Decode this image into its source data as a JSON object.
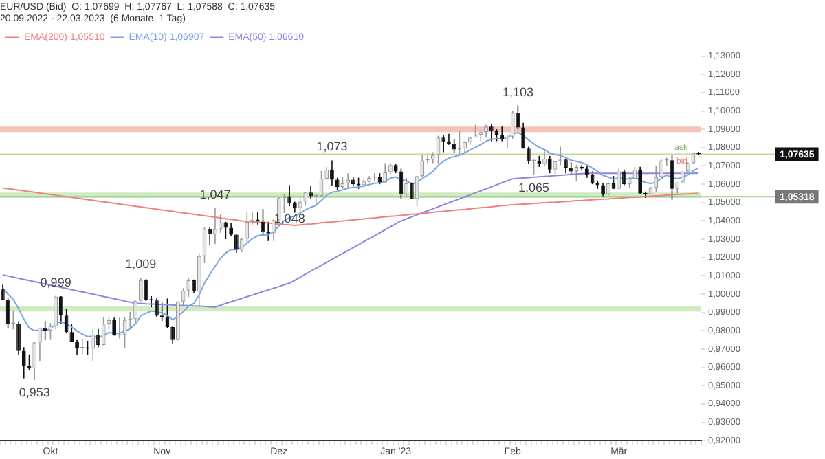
{
  "chart_data": {
    "type": "candlestick",
    "title": "EUR/USD (Bid)  O: 1,07699  H: 1,07767  L: 1,07588  C: 1,07635",
    "subtitle": "20.09.2022 - 22.03.2023  (6 Monate, 1 Tag)",
    "categories": [
      null,
      null,
      null,
      null,
      null,
      null,
      null,
      null,
      null,
      "Okt",
      null,
      null,
      null,
      null,
      null,
      null,
      null,
      null,
      null,
      null,
      null,
      null,
      null,
      null,
      null,
      null,
      null,
      null,
      null,
      null,
      "Nov",
      null,
      null,
      null,
      null,
      null,
      null,
      null,
      null,
      null,
      null,
      null,
      null,
      null,
      null,
      null,
      null,
      null,
      null,
      null,
      null,
      null,
      "Dez",
      null,
      null,
      null,
      null,
      null,
      null,
      null,
      null,
      null,
      null,
      null,
      null,
      null,
      null,
      null,
      null,
      null,
      null,
      null,
      null,
      null,
      "Jan '23",
      null,
      null,
      null,
      null,
      null,
      null,
      null,
      null,
      null,
      null,
      null,
      null,
      null,
      null,
      null,
      null,
      null,
      null,
      null,
      null,
      null,
      "Feb",
      null,
      null,
      null,
      null,
      null,
      null,
      null,
      null,
      null,
      null,
      null,
      null,
      null,
      null,
      null,
      null,
      null,
      null,
      null,
      "Mär",
      null,
      null,
      null,
      null,
      null,
      null,
      null,
      null,
      null,
      null,
      null,
      null,
      null,
      null,
      null
    ],
    "ohlc": [
      [
        1.0025,
        1.0051,
        0.9967,
        0.997
      ],
      [
        0.997,
        0.9976,
        0.9812,
        0.9837
      ],
      [
        0.9837,
        0.9907,
        0.9808,
        0.9837
      ],
      [
        0.9837,
        0.9852,
        0.9669,
        0.969
      ],
      [
        0.969,
        0.971,
        0.954,
        0.9607
      ],
      [
        0.9607,
        0.9671,
        0.9585,
        0.9594
      ],
      [
        0.9594,
        0.974,
        0.953,
        0.9736
      ],
      [
        0.9736,
        0.9817,
        0.9636,
        0.9816
      ],
      [
        0.9816,
        0.9853,
        0.9749,
        0.9801
      ],
      [
        0.9801,
        0.9842,
        0.975,
        0.9825
      ],
      [
        0.9825,
        0.999,
        0.9809,
        0.9987
      ],
      [
        0.9987,
        0.9989,
        0.9836,
        0.9883
      ],
      [
        0.9883,
        0.9921,
        0.9789,
        0.9793
      ],
      [
        0.9793,
        0.9835,
        0.9738,
        0.974
      ],
      [
        0.974,
        0.975,
        0.967,
        0.9704
      ],
      [
        0.9704,
        0.9757,
        0.9672,
        0.9705
      ],
      [
        0.9705,
        0.9745,
        0.967,
        0.9702
      ],
      [
        0.9702,
        0.9807,
        0.9632,
        0.978
      ],
      [
        0.978,
        0.981,
        0.971,
        0.9722
      ],
      [
        0.9722,
        0.9873,
        0.972,
        0.9838
      ],
      [
        0.9838,
        0.9876,
        0.9808,
        0.9858
      ],
      [
        0.9858,
        0.9872,
        0.9774,
        0.9774
      ],
      [
        0.9774,
        0.9875,
        0.9758,
        0.978
      ],
      [
        0.978,
        0.9873,
        0.9705,
        0.9859
      ],
      [
        0.9859,
        0.9903,
        0.9811,
        0.9863
      ],
      [
        0.9863,
        0.9965,
        0.9834,
        0.9964
      ],
      [
        0.9964,
        1.009,
        0.996,
        1.0077
      ],
      [
        1.0077,
        1.0083,
        0.9963,
        0.9966
      ],
      [
        0.9966,
        0.9989,
        0.9928,
        0.9965
      ],
      [
        0.9965,
        0.9977,
        0.9873,
        0.9882
      ],
      [
        0.9882,
        0.9954,
        0.9853,
        0.9875
      ],
      [
        0.9875,
        0.9976,
        0.9815,
        0.982
      ],
      [
        0.982,
        0.9825,
        0.973,
        0.975
      ],
      [
        0.975,
        0.996,
        0.9748,
        0.996
      ],
      [
        0.996,
        1.0033,
        0.9935,
        1.002
      ],
      [
        1.002,
        1.0085,
        0.9985,
        1.0075
      ],
      [
        1.0075,
        1.008,
        1.0007,
        1.0014
      ],
      [
        1.0014,
        1.0222,
        0.9935,
        1.0208
      ],
      [
        1.0208,
        1.0364,
        1.017,
        1.0355
      ],
      [
        1.0355,
        1.0365,
        1.027,
        1.0327
      ],
      [
        1.0327,
        1.047,
        1.0273,
        1.0355
      ],
      [
        1.0355,
        1.0435,
        1.0335,
        1.0392
      ],
      [
        1.0392,
        1.0395,
        1.03,
        1.0362
      ],
      [
        1.0362,
        1.0387,
        1.0318,
        1.0325
      ],
      [
        1.0325,
        1.0328,
        1.0225,
        1.0242
      ],
      [
        1.0242,
        1.0307,
        1.023,
        1.0302
      ],
      [
        1.0302,
        1.0448,
        1.0285,
        1.0394
      ],
      [
        1.0394,
        1.045,
        1.038,
        1.0407
      ],
      [
        1.0407,
        1.045,
        1.038,
        1.0396
      ],
      [
        1.0396,
        1.0465,
        1.033,
        1.0339
      ],
      [
        1.0339,
        1.0395,
        1.029,
        1.0332
      ],
      [
        1.0332,
        1.041,
        1.029,
        1.0404
      ],
      [
        1.0404,
        1.053,
        1.04,
        1.0524
      ],
      [
        1.0524,
        1.0545,
        1.0443,
        1.0535
      ],
      [
        1.0535,
        1.0595,
        1.048,
        1.0495
      ],
      [
        1.0495,
        1.0505,
        1.0445,
        1.047
      ],
      [
        1.047,
        1.0525,
        1.0445,
        1.0505
      ],
      [
        1.0505,
        1.0555,
        1.0485,
        1.0555
      ],
      [
        1.0555,
        1.059,
        1.052,
        1.0535
      ],
      [
        1.0535,
        1.055,
        1.0485,
        1.0537
      ],
      [
        1.0537,
        1.0673,
        1.053,
        1.063
      ],
      [
        1.063,
        1.0695,
        1.0625,
        1.068
      ],
      [
        1.068,
        1.073,
        1.059,
        1.0625
      ],
      [
        1.0625,
        1.0635,
        1.0568,
        1.0585
      ],
      [
        1.0585,
        1.064,
        1.0575,
        1.0605
      ],
      [
        1.0605,
        1.066,
        1.0575,
        1.0625
      ],
      [
        1.0625,
        1.064,
        1.059,
        1.06
      ],
      [
        1.06,
        1.0636,
        1.0575,
        1.0595
      ],
      [
        1.0595,
        1.063,
        1.0585,
        1.0615
      ],
      [
        1.0615,
        1.0645,
        1.061,
        1.0635
      ],
      [
        1.0635,
        1.066,
        1.0615,
        1.064
      ],
      [
        1.064,
        1.066,
        1.06,
        1.061
      ],
      [
        1.061,
        1.0715,
        1.0605,
        1.0665
      ],
      [
        1.0665,
        1.0715,
        1.0655,
        1.0705
      ],
      [
        1.0705,
        1.0713,
        1.066,
        1.067
      ],
      [
        1.067,
        1.0685,
        1.052,
        1.0545
      ],
      [
        1.0545,
        1.0635,
        1.0535,
        1.0605
      ],
      [
        1.0605,
        1.061,
        1.052,
        1.052
      ],
      [
        1.052,
        1.0645,
        1.048,
        1.0645
      ],
      [
        1.0645,
        1.076,
        1.064,
        1.073
      ],
      [
        1.073,
        1.076,
        1.0715,
        1.0735
      ],
      [
        1.0735,
        1.0775,
        1.0715,
        1.076
      ],
      [
        1.076,
        1.0865,
        1.071,
        1.0855
      ],
      [
        1.0855,
        1.087,
        1.0775,
        1.083
      ],
      [
        1.083,
        1.0875,
        1.0815,
        1.082
      ],
      [
        1.082,
        1.0845,
        1.077,
        1.079
      ],
      [
        1.079,
        1.089,
        1.0765,
        1.0795
      ],
      [
        1.0795,
        1.0835,
        1.077,
        1.083
      ],
      [
        1.083,
        1.086,
        1.0815,
        1.0855
      ],
      [
        1.0855,
        1.0925,
        1.0855,
        1.087
      ],
      [
        1.087,
        1.089,
        1.0835,
        1.0885
      ],
      [
        1.0885,
        1.0925,
        1.0855,
        1.0915
      ],
      [
        1.0915,
        1.093,
        1.0835,
        1.089
      ],
      [
        1.089,
        1.09,
        1.0835,
        1.087
      ],
      [
        1.087,
        1.0915,
        1.0835,
        1.0845
      ],
      [
        1.0845,
        1.087,
        1.08,
        1.086
      ],
      [
        1.086,
        1.1,
        1.0845,
        1.099
      ],
      [
        1.099,
        1.103,
        1.09,
        1.091
      ],
      [
        1.091,
        1.0935,
        1.0795,
        1.0795
      ],
      [
        1.0795,
        1.0805,
        1.071,
        1.0725
      ],
      [
        1.0725,
        1.0735,
        1.065,
        1.0725
      ],
      [
        1.0725,
        1.0755,
        1.0695,
        1.071
      ],
      [
        1.071,
        1.079,
        1.07,
        1.074
      ],
      [
        1.074,
        1.0755,
        1.066,
        1.068
      ],
      [
        1.068,
        1.0725,
        1.0655,
        1.0725
      ],
      [
        1.0725,
        1.0805,
        1.0705,
        1.0735
      ],
      [
        1.0735,
        1.074,
        1.066,
        1.069
      ],
      [
        1.069,
        1.072,
        1.0655,
        1.067
      ],
      [
        1.067,
        1.0705,
        1.0615,
        1.0695
      ],
      [
        1.0695,
        1.0705,
        1.0675,
        1.0685
      ],
      [
        1.0685,
        1.07,
        1.0635,
        1.065
      ],
      [
        1.065,
        1.067,
        1.06,
        1.0605
      ],
      [
        1.0605,
        1.062,
        1.0575,
        1.0595
      ],
      [
        1.0595,
        1.0605,
        1.0535,
        1.0545
      ],
      [
        1.0545,
        1.061,
        1.0535,
        1.0605
      ],
      [
        1.0605,
        1.0645,
        1.0575,
        1.0575
      ],
      [
        1.0575,
        1.069,
        1.0575,
        1.067
      ],
      [
        1.067,
        1.068,
        1.0595,
        1.06
      ],
      [
        1.06,
        1.064,
        1.058,
        1.063
      ],
      [
        1.063,
        1.0695,
        1.0625,
        1.068
      ],
      [
        1.068,
        1.0695,
        1.0545,
        1.055
      ],
      [
        1.055,
        1.056,
        1.0525,
        1.0545
      ],
      [
        1.0545,
        1.0585,
        1.0545,
        1.058
      ],
      [
        1.058,
        1.07,
        1.056,
        1.064
      ],
      [
        1.064,
        1.0735,
        1.064,
        1.073
      ],
      [
        1.073,
        1.0745,
        1.07,
        1.0731
      ],
      [
        1.0731,
        1.076,
        1.0515,
        1.0575
      ],
      [
        1.0575,
        1.061,
        1.055,
        1.061
      ],
      [
        1.061,
        1.067,
        1.0605,
        1.067
      ],
      [
        1.067,
        1.072,
        1.0665,
        1.0715
      ],
      [
        1.0715,
        1.077,
        1.071,
        1.077
      ],
      [
        1.07699,
        1.07767,
        1.07588,
        1.07635
      ]
    ],
    "series": [
      {
        "type": "line",
        "name": "EMA(200) 1,05510",
        "color": "#f08080",
        "values": [
          1.058,
          1.0576,
          1.0572,
          1.0568,
          1.0564,
          1.056,
          1.0556,
          1.0552,
          1.0548,
          1.0544,
          1.054,
          1.0536,
          1.0532,
          1.0528,
          1.0524,
          1.052,
          1.0516,
          1.0512,
          1.0508,
          1.0504,
          1.05,
          1.0496,
          1.0492,
          1.0488,
          1.0484,
          1.048,
          1.0476,
          1.0472,
          1.0468,
          1.0464,
          1.046,
          1.0456,
          1.0452,
          1.0448,
          1.0444,
          1.044,
          1.0436,
          1.0432,
          1.0428,
          1.0424,
          1.042,
          1.0416,
          1.0412,
          1.0408,
          1.0404,
          1.04,
          1.0398,
          1.0395,
          1.0392,
          1.039,
          1.0388,
          1.0385,
          1.0382,
          1.038,
          1.0378,
          1.0375,
          1.0378,
          1.0381,
          1.0383,
          1.0386,
          1.0389,
          1.0392,
          1.0394,
          1.0397,
          1.04,
          1.0403,
          1.0405,
          1.0408,
          1.0411,
          1.0414,
          1.0416,
          1.0419,
          1.0422,
          1.0425,
          1.0427,
          1.043,
          1.0433,
          1.0436,
          1.0438,
          1.0441,
          1.0444,
          1.0447,
          1.045,
          1.0452,
          1.0455,
          1.0458,
          1.0461,
          1.0463,
          1.0466,
          1.0469,
          1.0472,
          1.0474,
          1.0477,
          1.048,
          1.0483,
          1.0485,
          1.0488,
          1.049,
          1.0492,
          1.0493,
          1.0495,
          1.0497,
          1.0499,
          1.0501,
          1.0502,
          1.0504,
          1.0506,
          1.0508,
          1.051,
          1.0511,
          1.0513,
          1.0515,
          1.0517,
          1.0519,
          1.052,
          1.0522,
          1.0524,
          1.0526,
          1.0528,
          1.0529,
          1.0531,
          1.0533,
          1.0535,
          1.0537,
          1.0538,
          1.054,
          1.0542,
          1.0544,
          1.0546,
          1.0547,
          1.0549,
          1.0551
        ]
      },
      {
        "type": "line",
        "name": "EMA(10) 1,06907",
        "color": "#7aa6e0",
        "values": [
          1.0036,
          1.0,
          0.9971,
          0.992,
          0.9864,
          0.9815,
          0.9801,
          0.9804,
          0.9804,
          0.9808,
          0.984,
          0.9848,
          0.9838,
          0.982,
          0.9799,
          0.9782,
          0.9768,
          0.977,
          0.9761,
          0.9775,
          0.979,
          0.9787,
          0.9786,
          0.9799,
          0.981,
          0.9838,
          0.9881,
          0.9896,
          0.9908,
          0.9903,
          0.9898,
          0.9884,
          0.986,
          0.9878,
          0.9904,
          0.9935,
          0.9949,
          0.9996,
          1.006,
          1.0108,
          1.0152,
          1.0195,
          1.0225,
          1.0243,
          1.0243,
          1.0254,
          1.0279,
          1.0302,
          1.0319,
          1.0323,
          1.0325,
          1.0339,
          1.0372,
          1.0401,
          1.0418,
          1.0427,
          1.0441,
          1.0461,
          1.0474,
          1.0485,
          1.0511,
          1.0541,
          1.0556,
          1.0561,
          1.0569,
          1.0579,
          1.0583,
          1.0585,
          1.059,
          1.0598,
          1.0606,
          1.0607,
          1.0617,
          1.0633,
          1.064,
          1.0623,
          1.062,
          1.0602,
          1.061,
          1.0632,
          1.065,
          1.067,
          1.0703,
          1.0726,
          1.0743,
          1.0751,
          1.0759,
          1.0772,
          1.0787,
          1.0802,
          1.0817,
          1.0835,
          1.0845,
          1.0849,
          1.0849,
          1.0851,
          1.0876,
          1.0882,
          1.0867,
          1.0842,
          1.0821,
          1.0801,
          1.079,
          1.077,
          1.0762,
          1.0757,
          1.0745,
          1.0731,
          1.0725,
          1.0718,
          1.0706,
          1.0688,
          1.0671,
          1.0648,
          1.064,
          1.0628,
          1.0636,
          1.063,
          1.063,
          1.0639,
          1.0623,
          1.0609,
          1.0604,
          1.061,
          1.0632,
          1.065,
          1.0636,
          1.0631,
          1.0638,
          1.0652,
          1.0673,
          1.069
        ]
      },
      {
        "type": "line",
        "name": "EMA(50) 1,06610",
        "color": "#8f85e0",
        "values": [
          1.0105,
          1.0099,
          1.0093,
          1.0086,
          1.008,
          1.0074,
          1.0068,
          1.0062,
          1.0055,
          1.0049,
          1.0043,
          1.0037,
          1.0031,
          1.0024,
          1.0018,
          1.0012,
          1.0006,
          1.0,
          0.9993,
          0.9987,
          0.9981,
          0.9975,
          0.9969,
          0.9962,
          0.9956,
          0.995,
          0.9949,
          0.9947,
          0.9946,
          0.9945,
          0.9943,
          0.9942,
          0.9941,
          0.9939,
          0.9938,
          0.9937,
          0.9935,
          0.9934,
          0.9933,
          0.9931,
          0.993,
          0.9939,
          0.9949,
          0.9958,
          0.9967,
          0.9976,
          0.9986,
          0.9995,
          1.0004,
          1.0014,
          1.0023,
          1.0032,
          1.0041,
          1.0051,
          1.006,
          1.0076,
          1.0092,
          1.0109,
          1.0125,
          1.0141,
          1.0157,
          1.0173,
          1.019,
          1.0206,
          1.0222,
          1.0238,
          1.0254,
          1.027,
          1.0287,
          1.0303,
          1.0319,
          1.0335,
          1.0351,
          1.0368,
          1.0384,
          1.04,
          1.0411,
          1.0422,
          1.0433,
          1.0444,
          1.0455,
          1.0466,
          1.0477,
          1.0488,
          1.0499,
          1.051,
          1.052,
          1.0531,
          1.0542,
          1.0553,
          1.0564,
          1.0575,
          1.0586,
          1.0597,
          1.0608,
          1.0619,
          1.063,
          1.0632,
          1.0634,
          1.0636,
          1.0639,
          1.0641,
          1.0643,
          1.0645,
          1.0647,
          1.0649,
          1.0651,
          1.0654,
          1.0656,
          1.0658,
          1.066,
          1.066,
          1.066,
          1.066,
          1.066,
          1.066,
          1.066,
          1.066,
          1.066,
          1.066,
          1.066,
          1.066,
          1.066,
          1.066,
          1.066,
          1.066,
          1.066,
          1.066,
          1.066,
          1.066,
          1.066,
          1.0661
        ]
      }
    ],
    "bands": [
      {
        "axis": "y",
        "from": 0.9905,
        "to": 0.9935,
        "color": "#c5e8b7"
      },
      {
        "axis": "y",
        "from": 1.0525,
        "to": 1.0555,
        "color": "#c5e8b7"
      },
      {
        "axis": "y",
        "from": 1.0885,
        "to": 1.0915,
        "color": "#f2b8b0"
      }
    ],
    "ref_lines": [
      {
        "axis": "y",
        "value": 1.07635,
        "label": "1,07635",
        "color": "#c8d89a"
      },
      {
        "axis": "y",
        "value": 1.05318,
        "label": "1,05318",
        "color": "#9acf8a"
      }
    ],
    "annotations": [
      {
        "text": "0,953",
        "y": 0.953
      },
      {
        "text": "0,999",
        "y": 0.999
      },
      {
        "text": "1,009",
        "y": 1.009
      },
      {
        "text": "1,047",
        "y": 1.047
      },
      {
        "text": "1,073",
        "y": 1.073
      },
      {
        "text": "1,048",
        "y": 1.048
      },
      {
        "text": "1,103",
        "y": 1.103
      },
      {
        "text": "1,065",
        "y": 1.065
      },
      "ask",
      "bid"
    ],
    "ylim": [
      0.92,
      1.13
    ],
    "yticks": [
      {
        "value": 0.92,
        "label": "0,92000"
      },
      {
        "value": 0.93,
        "label": "0,93000"
      },
      {
        "value": 0.94,
        "label": "0,94000"
      },
      {
        "value": 0.95,
        "label": "0,95000"
      },
      {
        "value": 0.96,
        "label": "0,96000"
      },
      {
        "value": 0.97,
        "label": "0,97000"
      },
      {
        "value": 0.98,
        "label": "0,98000"
      },
      {
        "value": 0.99,
        "label": "0,99000"
      },
      {
        "value": 1.0,
        "label": "1,00000"
      },
      {
        "value": 1.01,
        "label": "1,01000"
      },
      {
        "value": 1.02,
        "label": "1,02000"
      },
      {
        "value": 1.03,
        "label": "1,03000"
      },
      {
        "value": 1.04,
        "label": "1,04000"
      },
      {
        "value": 1.05,
        "label": "1,05000"
      },
      {
        "value": 1.06,
        "label": "1,06000"
      },
      {
        "value": 1.07,
        "label": "1,07000"
      },
      {
        "value": 1.08,
        "label": "1,08000"
      },
      {
        "value": 1.09,
        "label": "1,09000"
      },
      {
        "value": 1.1,
        "label": "1,10000"
      },
      {
        "value": 1.11,
        "label": "1,11000"
      },
      {
        "value": 1.12,
        "label": "1,12000"
      },
      {
        "value": 1.13,
        "label": "1,13000"
      }
    ],
    "grid": false,
    "legend": "top left",
    "marker": "none"
  }
}
